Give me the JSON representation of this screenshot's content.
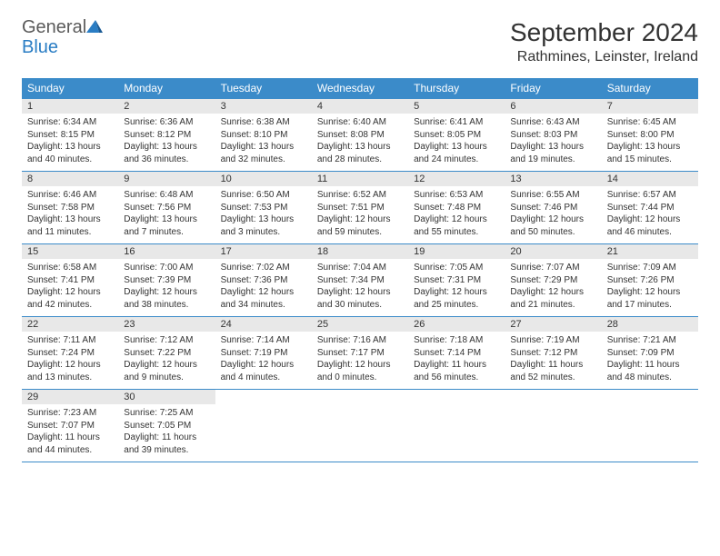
{
  "logo": {
    "general": "General",
    "blue": "Blue"
  },
  "title": "September 2024",
  "location": "Rathmines, Leinster, Ireland",
  "colors": {
    "header_bg": "#3b8bc9",
    "header_text": "#ffffff",
    "daynum_bg": "#e8e8e8",
    "text": "#333333",
    "border": "#3b8bc9",
    "logo_blue": "#2a7dc4"
  },
  "day_headers": [
    "Sunday",
    "Monday",
    "Tuesday",
    "Wednesday",
    "Thursday",
    "Friday",
    "Saturday"
  ],
  "days": [
    {
      "num": "1",
      "sunrise": "Sunrise: 6:34 AM",
      "sunset": "Sunset: 8:15 PM",
      "daylight": "Daylight: 13 hours and 40 minutes."
    },
    {
      "num": "2",
      "sunrise": "Sunrise: 6:36 AM",
      "sunset": "Sunset: 8:12 PM",
      "daylight": "Daylight: 13 hours and 36 minutes."
    },
    {
      "num": "3",
      "sunrise": "Sunrise: 6:38 AM",
      "sunset": "Sunset: 8:10 PM",
      "daylight": "Daylight: 13 hours and 32 minutes."
    },
    {
      "num": "4",
      "sunrise": "Sunrise: 6:40 AM",
      "sunset": "Sunset: 8:08 PM",
      "daylight": "Daylight: 13 hours and 28 minutes."
    },
    {
      "num": "5",
      "sunrise": "Sunrise: 6:41 AM",
      "sunset": "Sunset: 8:05 PM",
      "daylight": "Daylight: 13 hours and 24 minutes."
    },
    {
      "num": "6",
      "sunrise": "Sunrise: 6:43 AM",
      "sunset": "Sunset: 8:03 PM",
      "daylight": "Daylight: 13 hours and 19 minutes."
    },
    {
      "num": "7",
      "sunrise": "Sunrise: 6:45 AM",
      "sunset": "Sunset: 8:00 PM",
      "daylight": "Daylight: 13 hours and 15 minutes."
    },
    {
      "num": "8",
      "sunrise": "Sunrise: 6:46 AM",
      "sunset": "Sunset: 7:58 PM",
      "daylight": "Daylight: 13 hours and 11 minutes."
    },
    {
      "num": "9",
      "sunrise": "Sunrise: 6:48 AM",
      "sunset": "Sunset: 7:56 PM",
      "daylight": "Daylight: 13 hours and 7 minutes."
    },
    {
      "num": "10",
      "sunrise": "Sunrise: 6:50 AM",
      "sunset": "Sunset: 7:53 PM",
      "daylight": "Daylight: 13 hours and 3 minutes."
    },
    {
      "num": "11",
      "sunrise": "Sunrise: 6:52 AM",
      "sunset": "Sunset: 7:51 PM",
      "daylight": "Daylight: 12 hours and 59 minutes."
    },
    {
      "num": "12",
      "sunrise": "Sunrise: 6:53 AM",
      "sunset": "Sunset: 7:48 PM",
      "daylight": "Daylight: 12 hours and 55 minutes."
    },
    {
      "num": "13",
      "sunrise": "Sunrise: 6:55 AM",
      "sunset": "Sunset: 7:46 PM",
      "daylight": "Daylight: 12 hours and 50 minutes."
    },
    {
      "num": "14",
      "sunrise": "Sunrise: 6:57 AM",
      "sunset": "Sunset: 7:44 PM",
      "daylight": "Daylight: 12 hours and 46 minutes."
    },
    {
      "num": "15",
      "sunrise": "Sunrise: 6:58 AM",
      "sunset": "Sunset: 7:41 PM",
      "daylight": "Daylight: 12 hours and 42 minutes."
    },
    {
      "num": "16",
      "sunrise": "Sunrise: 7:00 AM",
      "sunset": "Sunset: 7:39 PM",
      "daylight": "Daylight: 12 hours and 38 minutes."
    },
    {
      "num": "17",
      "sunrise": "Sunrise: 7:02 AM",
      "sunset": "Sunset: 7:36 PM",
      "daylight": "Daylight: 12 hours and 34 minutes."
    },
    {
      "num": "18",
      "sunrise": "Sunrise: 7:04 AM",
      "sunset": "Sunset: 7:34 PM",
      "daylight": "Daylight: 12 hours and 30 minutes."
    },
    {
      "num": "19",
      "sunrise": "Sunrise: 7:05 AM",
      "sunset": "Sunset: 7:31 PM",
      "daylight": "Daylight: 12 hours and 25 minutes."
    },
    {
      "num": "20",
      "sunrise": "Sunrise: 7:07 AM",
      "sunset": "Sunset: 7:29 PM",
      "daylight": "Daylight: 12 hours and 21 minutes."
    },
    {
      "num": "21",
      "sunrise": "Sunrise: 7:09 AM",
      "sunset": "Sunset: 7:26 PM",
      "daylight": "Daylight: 12 hours and 17 minutes."
    },
    {
      "num": "22",
      "sunrise": "Sunrise: 7:11 AM",
      "sunset": "Sunset: 7:24 PM",
      "daylight": "Daylight: 12 hours and 13 minutes."
    },
    {
      "num": "23",
      "sunrise": "Sunrise: 7:12 AM",
      "sunset": "Sunset: 7:22 PM",
      "daylight": "Daylight: 12 hours and 9 minutes."
    },
    {
      "num": "24",
      "sunrise": "Sunrise: 7:14 AM",
      "sunset": "Sunset: 7:19 PM",
      "daylight": "Daylight: 12 hours and 4 minutes."
    },
    {
      "num": "25",
      "sunrise": "Sunrise: 7:16 AM",
      "sunset": "Sunset: 7:17 PM",
      "daylight": "Daylight: 12 hours and 0 minutes."
    },
    {
      "num": "26",
      "sunrise": "Sunrise: 7:18 AM",
      "sunset": "Sunset: 7:14 PM",
      "daylight": "Daylight: 11 hours and 56 minutes."
    },
    {
      "num": "27",
      "sunrise": "Sunrise: 7:19 AM",
      "sunset": "Sunset: 7:12 PM",
      "daylight": "Daylight: 11 hours and 52 minutes."
    },
    {
      "num": "28",
      "sunrise": "Sunrise: 7:21 AM",
      "sunset": "Sunset: 7:09 PM",
      "daylight": "Daylight: 11 hours and 48 minutes."
    },
    {
      "num": "29",
      "sunrise": "Sunrise: 7:23 AM",
      "sunset": "Sunset: 7:07 PM",
      "daylight": "Daylight: 11 hours and 44 minutes."
    },
    {
      "num": "30",
      "sunrise": "Sunrise: 7:25 AM",
      "sunset": "Sunset: 7:05 PM",
      "daylight": "Daylight: 11 hours and 39 minutes."
    }
  ]
}
